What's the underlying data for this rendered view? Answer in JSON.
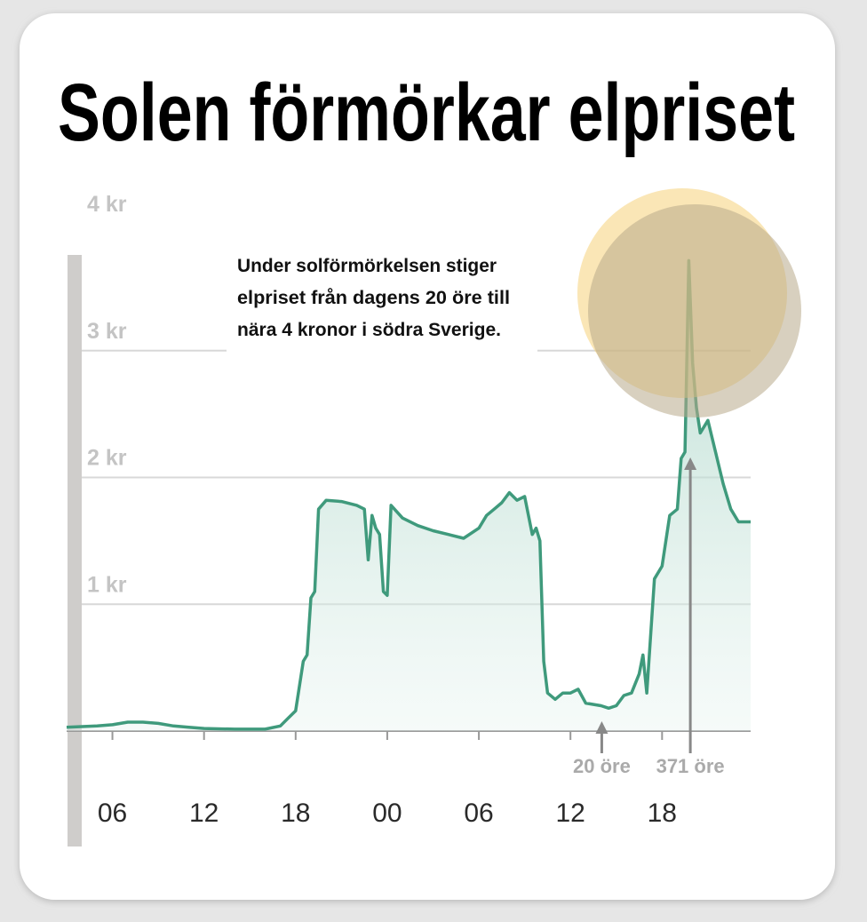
{
  "chart_data": {
    "type": "area-line",
    "title": "Solen förmörkar elpriset",
    "annotation": [
      "Under solförmörkelsen stiger",
      "elpriset från dagens 20 öre till",
      "nära 4 kronor i södra Sverige."
    ],
    "callouts": [
      {
        "text": "20 öre",
        "x": 38.05
      },
      {
        "text": "371 öre",
        "x": 43.85
      }
    ],
    "color": "#3f9a7c",
    "x": [
      3,
      5,
      6,
      7,
      8,
      9,
      10,
      11,
      12,
      14,
      16,
      17,
      17.5,
      18,
      18.5,
      18.75,
      19,
      19.25,
      19.5,
      20,
      21,
      22,
      22.5,
      22.75,
      23,
      23.25,
      23.5,
      23.75,
      24,
      24.25,
      25,
      26,
      27,
      28,
      29,
      30,
      30.5,
      31,
      31.5,
      32,
      32.5,
      33,
      33.5,
      33.75,
      34,
      34.25,
      34.5,
      35,
      35.5,
      36,
      36.5,
      37,
      38,
      38.5,
      39,
      39.5,
      40,
      40.5,
      40.75,
      41,
      41.5,
      42,
      42.5,
      43,
      43.25,
      43.5,
      43.75,
      44,
      44.25,
      44.5,
      45,
      45.5,
      46,
      46.5,
      47,
      47.8
    ],
    "values": [
      0.03,
      0.04,
      0.05,
      0.07,
      0.07,
      0.06,
      0.04,
      0.03,
      0.02,
      0.015,
      0.015,
      0.04,
      0.1,
      0.16,
      0.55,
      0.6,
      1.05,
      1.1,
      1.75,
      1.82,
      1.81,
      1.78,
      1.75,
      1.35,
      1.7,
      1.6,
      1.55,
      1.1,
      1.07,
      1.78,
      1.68,
      1.62,
      1.58,
      1.55,
      1.52,
      1.6,
      1.7,
      1.75,
      1.8,
      1.88,
      1.82,
      1.85,
      1.55,
      1.6,
      1.5,
      0.55,
      0.3,
      0.25,
      0.3,
      0.3,
      0.33,
      0.22,
      0.2,
      0.18,
      0.2,
      0.28,
      0.3,
      0.45,
      0.6,
      0.3,
      1.2,
      1.3,
      1.7,
      1.75,
      2.15,
      2.2,
      3.71,
      2.9,
      2.55,
      2.35,
      2.45,
      2.2,
      1.95,
      1.75,
      1.65,
      1.65
    ],
    "xlim": [
      3,
      47.8
    ],
    "xticks": [
      {
        "value": 6,
        "label": "06"
      },
      {
        "value": 12,
        "label": "12"
      },
      {
        "value": 18,
        "label": "18"
      },
      {
        "value": 24,
        "label": "00"
      },
      {
        "value": 30,
        "label": "06"
      },
      {
        "value": 36,
        "label": "12"
      },
      {
        "value": 42,
        "label": "18"
      }
    ],
    "ylim": [
      0,
      4
    ],
    "yticks": [
      {
        "value": 1,
        "label": "1 kr"
      },
      {
        "value": 2,
        "label": "2 kr"
      },
      {
        "value": 3,
        "label": "3 kr"
      },
      {
        "value": 4,
        "label": "4 kr"
      }
    ],
    "grid": true
  }
}
